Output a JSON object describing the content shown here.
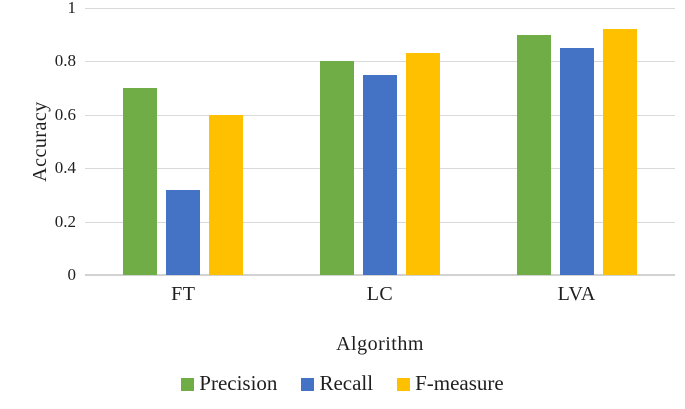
{
  "chart_data": {
    "type": "bar",
    "title": "",
    "xlabel": "Algorithm",
    "ylabel": "Accuracy",
    "categories": [
      "FT",
      "LC",
      "LVA"
    ],
    "series": [
      {
        "name": "Precision",
        "color": "#70AD47",
        "values": [
          0.7,
          0.8,
          0.9
        ]
      },
      {
        "name": "Recall",
        "color": "#4472C4",
        "values": [
          0.32,
          0.75,
          0.85
        ]
      },
      {
        "name": "F-measure",
        "color": "#FFC000",
        "values": [
          0.6,
          0.83,
          0.92
        ]
      }
    ],
    "ylim": [
      0,
      1
    ],
    "yticks": [
      {
        "value": 0,
        "label": "0"
      },
      {
        "value": 0.2,
        "label": "0.2"
      },
      {
        "value": 0.4,
        "label": "0.4"
      },
      {
        "value": 0.6,
        "label": "0.6"
      },
      {
        "value": 0.8,
        "label": "0.8"
      },
      {
        "value": 1,
        "label": "1"
      }
    ],
    "grid": "horizontal",
    "legend_position": "bottom",
    "colors": {
      "gridline": "#D9D9D9",
      "axis_line": "#D2D2D2",
      "text": "#1F1F1F",
      "background": "#FFFFFF"
    }
  }
}
